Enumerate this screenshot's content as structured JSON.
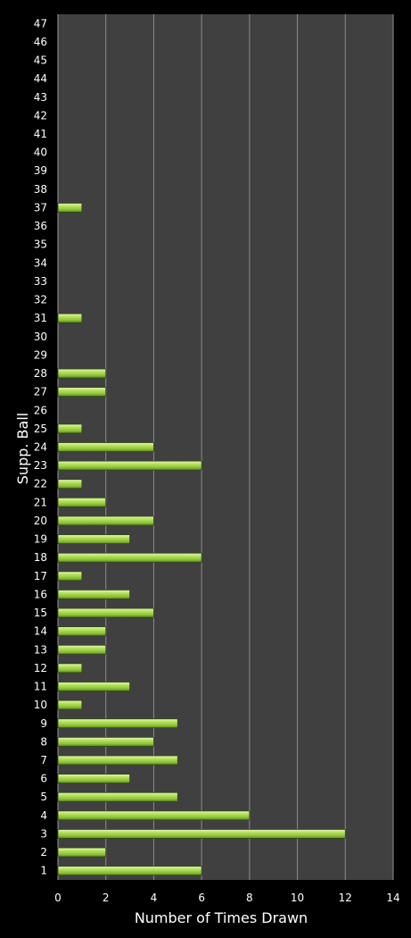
{
  "chart_data": {
    "type": "bar",
    "orientation": "horizontal",
    "title": "",
    "xlabel": "Number of Times Drawn",
    "ylabel": "Supp. Ball",
    "xlim": [
      0,
      14
    ],
    "xticks": [
      0,
      2,
      4,
      6,
      8,
      10,
      12,
      14
    ],
    "grid": true,
    "legend": "none",
    "categories": [
      "1",
      "2",
      "3",
      "4",
      "5",
      "6",
      "7",
      "8",
      "9",
      "10",
      "11",
      "12",
      "13",
      "14",
      "15",
      "16",
      "17",
      "18",
      "19",
      "20",
      "21",
      "22",
      "23",
      "24",
      "25",
      "26",
      "27",
      "28",
      "29",
      "30",
      "31",
      "32",
      "33",
      "34",
      "35",
      "36",
      "37",
      "38",
      "39",
      "40",
      "41",
      "42",
      "43",
      "44",
      "45",
      "46",
      "47"
    ],
    "values": [
      6,
      2,
      12,
      8,
      5,
      3,
      5,
      4,
      5,
      1,
      3,
      1,
      2,
      2,
      4,
      3,
      1,
      6,
      3,
      4,
      2,
      1,
      6,
      4,
      1,
      0,
      2,
      2,
      0,
      0,
      1,
      0,
      0,
      0,
      0,
      0,
      1,
      0,
      0,
      0,
      0,
      0,
      0,
      0,
      0,
      0,
      0
    ],
    "colors": {
      "background": "#000000",
      "plot_area": "#404040",
      "grid": "#8c8c8c",
      "bar": "#a4d84a",
      "text": "#ffffff"
    }
  }
}
